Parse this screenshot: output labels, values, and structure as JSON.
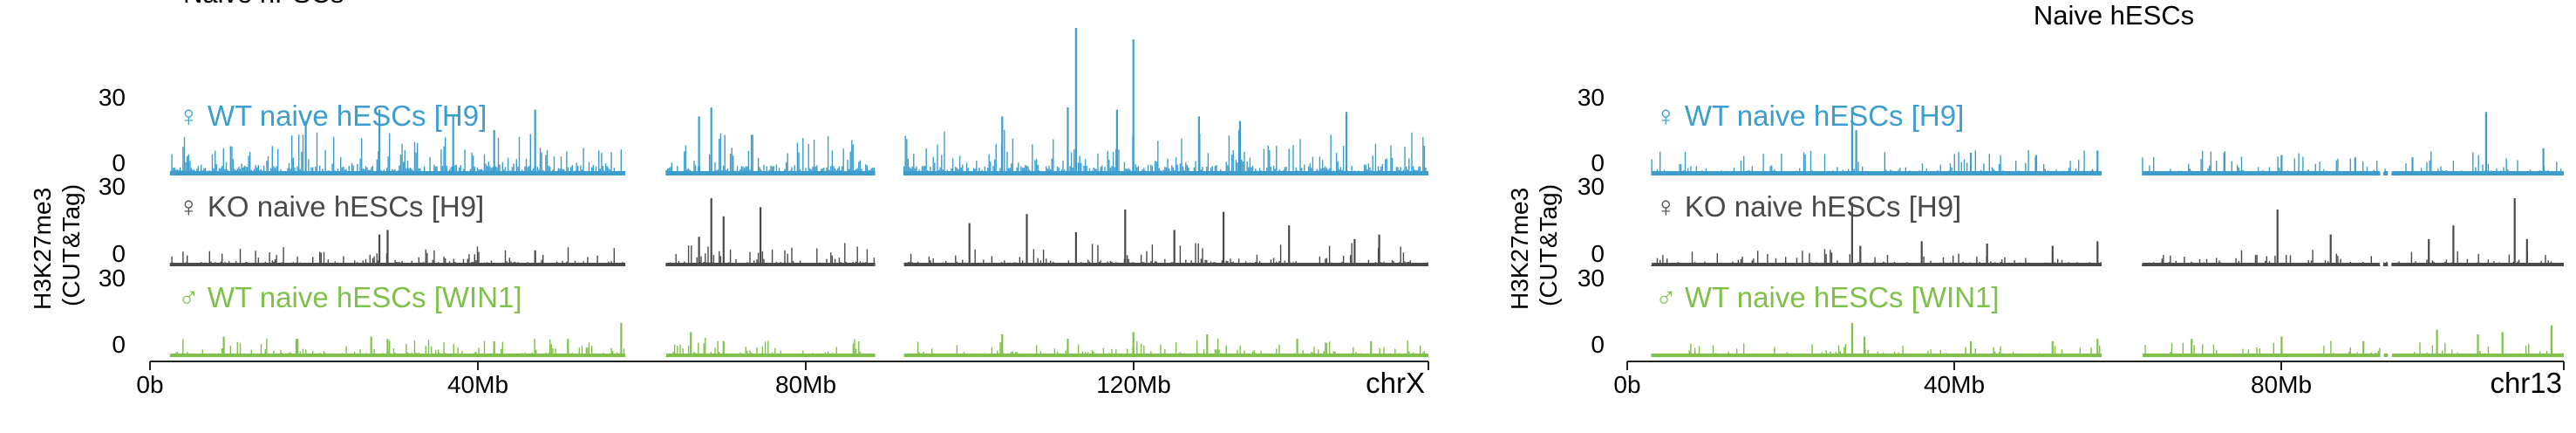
{
  "figure": {
    "ylabel_line1": "H3K27me3",
    "ylabel_line2": "(CUT&Tag)"
  },
  "colors": {
    "wt_h9": "#3c9dce",
    "ko_h9": "#4a4a4a",
    "wt_win1": "#7fc04a",
    "axis": "#222222"
  },
  "chart_data": [
    {
      "type": "area",
      "title": "Naive hPSCs",
      "chromosome_label": "chrX",
      "x_unit": "Mb",
      "xlim": [
        0,
        156
      ],
      "x_ticks": [
        0,
        40,
        80,
        120
      ],
      "x_tick_labels": [
        "0b",
        "40Mb",
        "80Mb",
        "120Mb"
      ],
      "ylim": [
        0,
        30
      ],
      "y_tick_labels": [
        "30",
        "0"
      ],
      "coverage_segments": [
        [
          2.5,
          58
        ],
        [
          63,
          88.5
        ],
        [
          92,
          156
        ]
      ],
      "series": [
        {
          "name": "♀ WT naive hESCs [H9]",
          "color_key": "wt_h9",
          "density": 0.85,
          "baseline": 3.0,
          "noise": 5.5,
          "seed": 11,
          "peaks": [
            [
              19,
              24
            ],
            [
              28,
              29
            ],
            [
              37,
              26
            ],
            [
              42,
              20
            ],
            [
              47,
              29
            ],
            [
              67,
              26
            ],
            [
              68.5,
              30
            ],
            [
              104,
              26
            ],
            [
              112,
              30
            ],
            [
              113,
              65
            ],
            [
              118,
              29
            ],
            [
              120,
              60
            ],
            [
              128,
              26
            ],
            [
              133,
              24
            ],
            [
              146,
              28
            ]
          ]
        },
        {
          "name": "♀ KO naive hESCs [H9]",
          "color_key": "ko_h9",
          "density": 0.55,
          "baseline": 1.5,
          "noise": 3.0,
          "seed": 23,
          "peaks": [
            [
              28,
              14
            ],
            [
              29,
              16
            ],
            [
              47,
              7
            ],
            [
              67,
              13
            ],
            [
              68.5,
              30
            ],
            [
              70,
              22
            ],
            [
              74.5,
              26
            ],
            [
              100,
              19
            ],
            [
              107,
              23
            ],
            [
              113,
              15
            ],
            [
              119,
              25
            ],
            [
              125,
              16
            ],
            [
              131,
              24
            ],
            [
              139,
              18
            ],
            [
              147,
              12
            ],
            [
              150,
              14
            ]
          ]
        },
        {
          "name": "♂ WT naive hESCs [WIN1]",
          "color_key": "wt_win1",
          "density": 0.7,
          "baseline": 1.2,
          "noise": 2.5,
          "seed": 37,
          "peaks": [
            [
              9,
              9
            ],
            [
              18,
              8
            ],
            [
              27,
              9
            ],
            [
              29,
              8
            ],
            [
              42,
              7
            ],
            [
              51,
              8
            ],
            [
              57.5,
              15
            ],
            [
              66,
              11
            ],
            [
              70,
              7
            ],
            [
              104,
              10
            ],
            [
              112,
              8
            ],
            [
              120,
              11
            ],
            [
              129,
              10
            ],
            [
              140,
              8
            ],
            [
              149,
              7
            ]
          ]
        }
      ]
    },
    {
      "type": "area",
      "title": "Naive hESCs",
      "chromosome_label": "chr13",
      "x_unit": "Mb",
      "xlim": [
        0,
        114.5
      ],
      "x_ticks": [
        0,
        40,
        80
      ],
      "x_tick_labels": [
        "0b",
        "40Mb",
        "80Mb"
      ],
      "ylim": [
        0,
        30
      ],
      "y_tick_labels": [
        "30",
        "0"
      ],
      "coverage_segments": [
        [
          3,
          58
        ],
        [
          63,
          92
        ],
        [
          92.5,
          93
        ],
        [
          93.5,
          114.5
        ]
      ],
      "series": [
        {
          "name": "♀ WT naive hESCs [H9]",
          "color_key": "wt_h9",
          "density": 0.6,
          "baseline": 1.6,
          "noise": 3.2,
          "seed": 41,
          "peaks": [
            [
              27.5,
              30
            ],
            [
              28,
              20
            ],
            [
              42,
              10
            ],
            [
              50,
              9
            ],
            [
              57.5,
              11
            ],
            [
              73,
              10
            ],
            [
              80,
              9
            ],
            [
              89,
              8
            ],
            [
              96,
              8
            ],
            [
              105,
              28
            ],
            [
              112,
              12
            ]
          ]
        },
        {
          "name": "♀ KO naive hESCs [H9]",
          "color_key": "ko_h9",
          "density": 0.5,
          "baseline": 1.2,
          "noise": 2.2,
          "seed": 53,
          "peaks": [
            [
              27.5,
              28
            ],
            [
              28.5,
              9
            ],
            [
              36,
              11
            ],
            [
              44,
              10
            ],
            [
              52,
              9
            ],
            [
              57.5,
              11
            ],
            [
              79.5,
              25
            ],
            [
              86,
              14
            ],
            [
              98,
              12
            ],
            [
              101,
              18
            ],
            [
              108.5,
              30
            ],
            [
              110,
              12
            ]
          ]
        },
        {
          "name": "♂ WT naive hESCs [WIN1]",
          "color_key": "wt_win1",
          "density": 0.5,
          "baseline": 1.0,
          "noise": 2.0,
          "seed": 67,
          "peaks": [
            [
              27.5,
              15
            ],
            [
              29,
              9
            ],
            [
              42,
              7
            ],
            [
              52,
              7
            ],
            [
              57.5,
              8
            ],
            [
              69,
              8
            ],
            [
              80,
              9
            ],
            [
              90,
              7
            ],
            [
              99,
              12
            ],
            [
              104,
              10
            ],
            [
              107,
              11
            ],
            [
              113,
              14
            ]
          ]
        }
      ]
    }
  ]
}
